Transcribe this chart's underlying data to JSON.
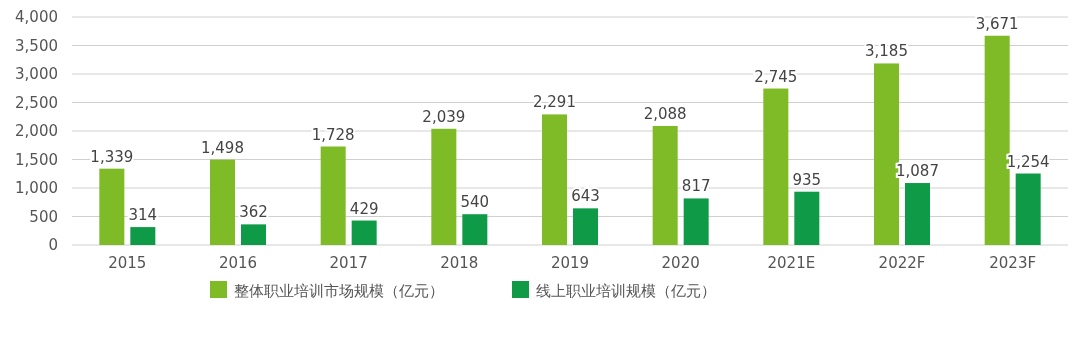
{
  "chart_data": {
    "type": "bar",
    "categories": [
      "2015",
      "2016",
      "2017",
      "2018",
      "2019",
      "2020",
      "2021E",
      "2022F",
      "2023F"
    ],
    "series": [
      {
        "name": "整体职业培训市场规模（亿元）",
        "color": "#7fba27",
        "values": [
          1339,
          1498,
          1728,
          2039,
          2291,
          2088,
          2745,
          3185,
          3671
        ],
        "value_labels": [
          "1,339",
          "1,498",
          "1,728",
          "2,039",
          "2,291",
          "2,088",
          "2,745",
          "3,185",
          "3,671"
        ]
      },
      {
        "name": "线上职业培训规模（亿元）",
        "color": "#0f9a48",
        "values": [
          314,
          362,
          429,
          540,
          643,
          817,
          935,
          1087,
          1254
        ],
        "value_labels": [
          "314",
          "362",
          "429",
          "540",
          "643",
          "817",
          "935",
          "1,087",
          "1,254"
        ]
      }
    ],
    "ylim": [
      0,
      4000
    ],
    "yticks": [
      0,
      500,
      {
        "value": 1000,
        "label": "1,000"
      },
      {
        "value": 1500,
        "label": "1,500"
      },
      {
        "value": 2000,
        "label": "2,000"
      },
      {
        "value": 2500,
        "label": "2,500"
      },
      {
        "value": 3000,
        "label": "3,000"
      },
      {
        "value": 3500,
        "label": "3,500"
      },
      {
        "value": 4000,
        "label": "4,000"
      }
    ],
    "grid": "y",
    "legend": "bottom"
  }
}
